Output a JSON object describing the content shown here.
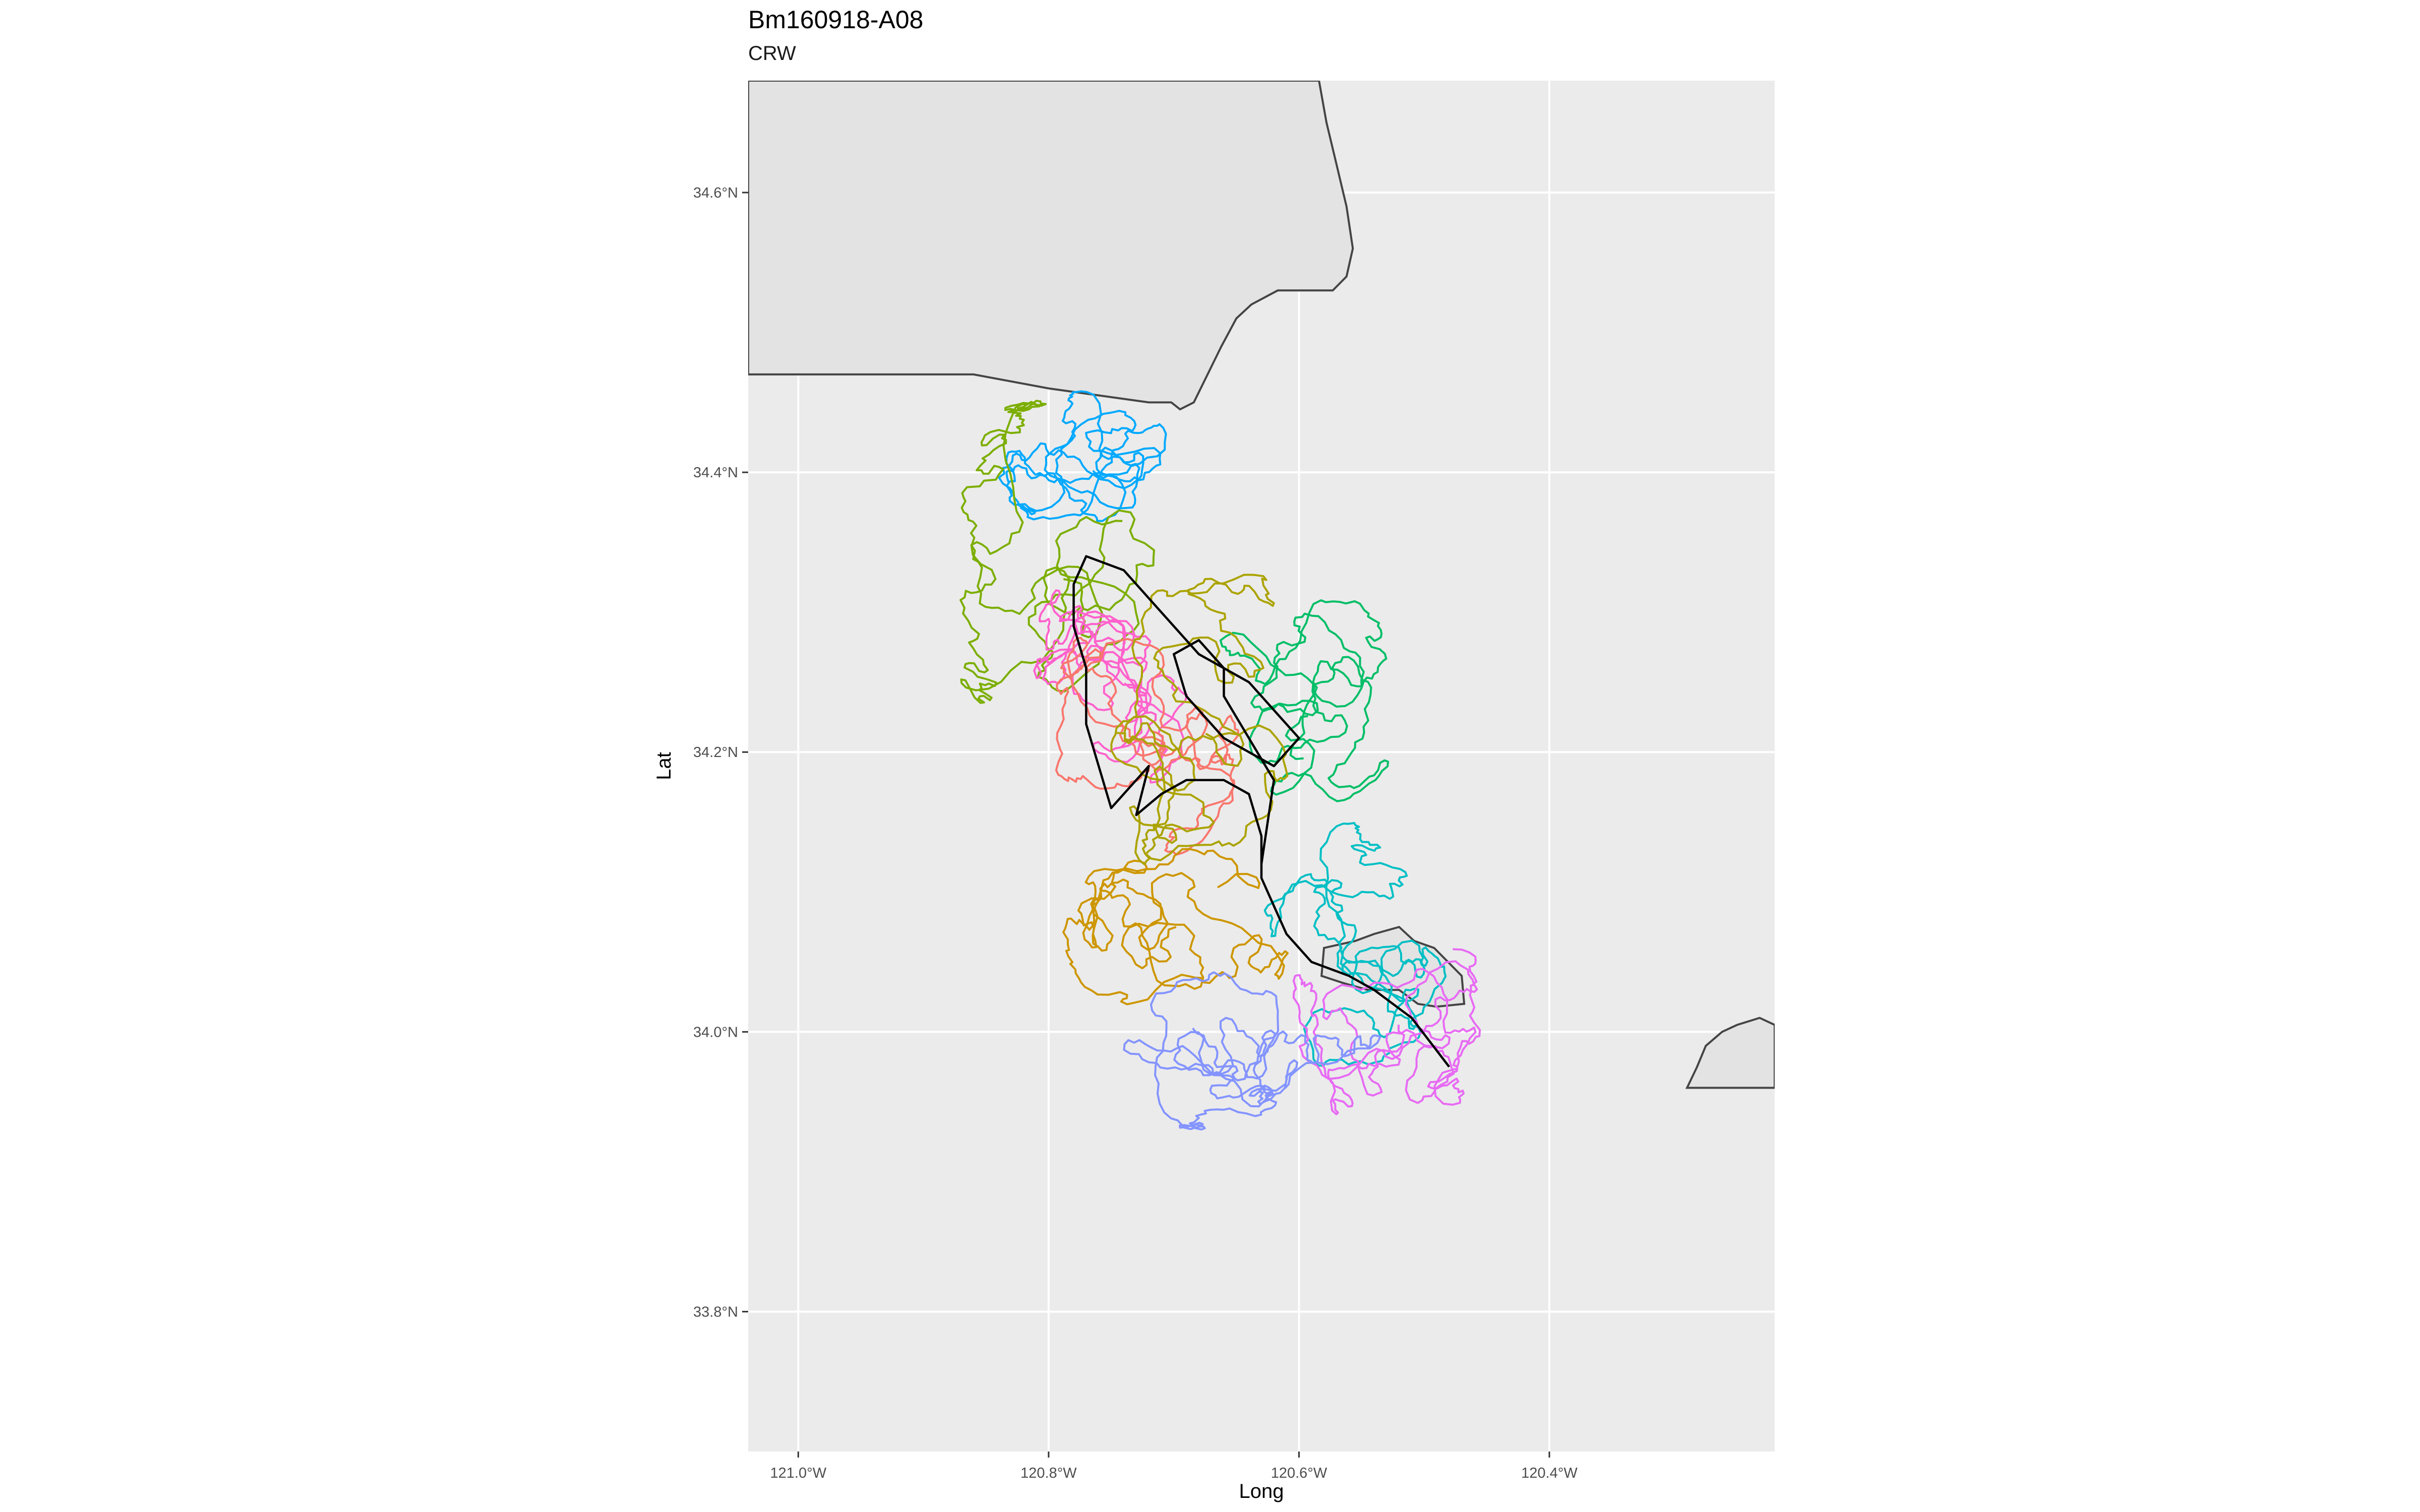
{
  "title": "Bm160918-A08",
  "subtitle": "CRW",
  "chart_data": {
    "type": "map-track",
    "xlabel": "Long",
    "ylabel": "Lat",
    "xlim": [
      -121.04,
      -120.22
    ],
    "ylim": [
      33.7,
      34.68
    ],
    "x_ticks": [
      {
        "value": -121.0,
        "label": "121.0°W"
      },
      {
        "value": -120.8,
        "label": "120.8°W"
      },
      {
        "value": -120.6,
        "label": "120.6°W"
      },
      {
        "value": -120.4,
        "label": "120.4°W"
      }
    ],
    "y_ticks": [
      {
        "value": 33.8,
        "label": "33.8°N"
      },
      {
        "value": 34.0,
        "label": "34.0°N"
      },
      {
        "value": 34.2,
        "label": "34.2°N"
      },
      {
        "value": 34.4,
        "label": "34.4°N"
      },
      {
        "value": 34.6,
        "label": "34.6°N"
      }
    ],
    "grid": true,
    "panel_color": "#ebebeb",
    "land_color": "#e3e3e3",
    "land": [
      {
        "name": "mainland",
        "coords": [
          [
            -120.584,
            34.68
          ],
          [
            -120.578,
            34.65
          ],
          [
            -120.57,
            34.62
          ],
          [
            -120.562,
            34.59
          ],
          [
            -120.557,
            34.56
          ],
          [
            -120.562,
            34.54
          ],
          [
            -120.573,
            34.53
          ],
          [
            -120.6,
            34.53
          ],
          [
            -120.617,
            34.53
          ],
          [
            -120.638,
            34.52
          ],
          [
            -120.65,
            34.51
          ],
          [
            -120.662,
            34.49
          ],
          [
            -120.673,
            34.47
          ],
          [
            -120.684,
            34.45
          ],
          [
            -120.695,
            34.445
          ],
          [
            -120.702,
            34.45
          ],
          [
            -120.72,
            34.45
          ],
          [
            -120.76,
            34.455
          ],
          [
            -120.8,
            34.46
          ],
          [
            -120.86,
            34.47
          ],
          [
            -120.95,
            34.47
          ],
          [
            -121.04,
            34.47
          ],
          [
            -121.04,
            34.68
          ]
        ]
      },
      {
        "name": "island-mid",
        "coords": [
          [
            -120.58,
            34.06
          ],
          [
            -120.555,
            34.065
          ],
          [
            -120.54,
            34.07
          ],
          [
            -120.52,
            34.075
          ],
          [
            -120.508,
            34.065
          ],
          [
            -120.492,
            34.06
          ],
          [
            -120.47,
            34.04
          ],
          [
            -120.468,
            34.02
          ],
          [
            -120.49,
            34.018
          ],
          [
            -120.505,
            34.02
          ],
          [
            -120.52,
            34.03
          ],
          [
            -120.545,
            34.03
          ],
          [
            -120.565,
            34.035
          ],
          [
            -120.582,
            34.04
          ]
        ]
      },
      {
        "name": "island-east",
        "coords": [
          [
            -120.22,
            34.005
          ],
          [
            -120.232,
            34.01
          ],
          [
            -120.25,
            34.005
          ],
          [
            -120.262,
            34.0
          ],
          [
            -120.275,
            33.99
          ],
          [
            -120.282,
            33.975
          ],
          [
            -120.29,
            33.96
          ],
          [
            -120.22,
            33.96
          ]
        ]
      }
    ],
    "mean_track": {
      "name": "observed track",
      "color": "#000000",
      "coords": [
        [
          -120.48,
          33.975
        ],
        [
          -120.51,
          34.01
        ],
        [
          -120.54,
          34.03
        ],
        [
          -120.56,
          34.04
        ],
        [
          -120.59,
          34.05
        ],
        [
          -120.61,
          34.07
        ],
        [
          -120.62,
          34.09
        ],
        [
          -120.63,
          34.11
        ],
        [
          -120.63,
          34.14
        ],
        [
          -120.64,
          34.17
        ],
        [
          -120.66,
          34.18
        ],
        [
          -120.69,
          34.18
        ],
        [
          -120.71,
          34.17
        ],
        [
          -120.73,
          34.155
        ],
        [
          -120.72,
          34.19
        ],
        [
          -120.75,
          34.16
        ],
        [
          -120.76,
          34.19
        ],
        [
          -120.77,
          34.22
        ],
        [
          -120.77,
          34.26
        ],
        [
          -120.78,
          34.29
        ],
        [
          -120.78,
          34.32
        ],
        [
          -120.77,
          34.34
        ],
        [
          -120.74,
          34.33
        ],
        [
          -120.71,
          34.3
        ],
        [
          -120.68,
          34.27
        ],
        [
          -120.64,
          34.25
        ],
        [
          -120.6,
          34.21
        ],
        [
          -120.62,
          34.19
        ],
        [
          -120.66,
          34.21
        ],
        [
          -120.69,
          34.24
        ],
        [
          -120.7,
          34.27
        ],
        [
          -120.68,
          34.28
        ],
        [
          -120.66,
          34.26
        ],
        [
          -120.66,
          34.24
        ],
        [
          -120.62,
          34.18
        ],
        [
          -120.63,
          34.12
        ]
      ]
    },
    "series": [
      {
        "color": "#00a9ff",
        "center": [
          -120.768,
          34.405
        ],
        "spread": [
          0.03,
          0.02
        ],
        "steps": 320,
        "stroke": 0.006
      },
      {
        "color": "#7cae00",
        "center": [
          -120.79,
          34.33
        ],
        "spread": [
          0.04,
          0.045
        ],
        "steps": 320,
        "stroke": 0.008
      },
      {
        "color": "#ff61cc",
        "center": [
          -120.745,
          34.25
        ],
        "spread": [
          0.025,
          0.045
        ],
        "steps": 360,
        "stroke": 0.006
      },
      {
        "color": "#f8766d",
        "center": [
          -120.72,
          34.22
        ],
        "spread": [
          0.03,
          0.04
        ],
        "steps": 300,
        "stroke": 0.006
      },
      {
        "color": "#cd9600",
        "center": [
          -120.695,
          34.08
        ],
        "spread": [
          0.035,
          0.03
        ],
        "steps": 300,
        "stroke": 0.007
      },
      {
        "color": "#00be67",
        "center": [
          -120.59,
          34.23
        ],
        "spread": [
          0.035,
          0.04
        ],
        "steps": 300,
        "stroke": 0.006
      },
      {
        "color": "#aba300",
        "center": [
          -120.68,
          34.21
        ],
        "spread": [
          0.03,
          0.06
        ],
        "steps": 320,
        "stroke": 0.007
      },
      {
        "color": "#00bfc4",
        "center": [
          -120.56,
          34.04
        ],
        "spread": [
          0.03,
          0.045
        ],
        "steps": 340,
        "stroke": 0.006
      },
      {
        "color": "#e76bf3",
        "center": [
          -120.52,
          34.01
        ],
        "spread": [
          0.03,
          0.035
        ],
        "steps": 340,
        "stroke": 0.006
      },
      {
        "color": "#8494ff",
        "center": [
          -120.69,
          34.005
        ],
        "spread": [
          0.055,
          0.03
        ],
        "steps": 360,
        "stroke": 0.006
      }
    ]
  }
}
